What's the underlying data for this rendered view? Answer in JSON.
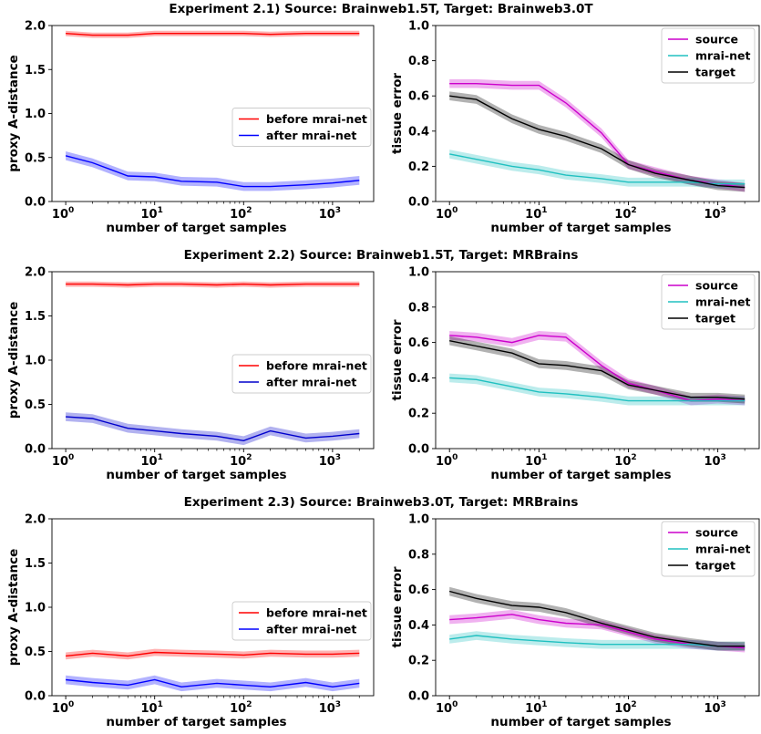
{
  "chart_data": [
    {
      "title": "Experiment 2.1) Source: Brainweb1.5T, Target: Brainweb3.0T",
      "panels": [
        {
          "type": "line",
          "xscale": "log",
          "xlim": [
            0.7,
            2900
          ],
          "ylim": [
            0,
            2.0
          ],
          "xticks": [
            1,
            10,
            100,
            1000
          ],
          "xticklabels": [
            "10",
            "10",
            "10",
            "10"
          ],
          "xtick_exponents": [
            "0",
            "1",
            "2",
            "3"
          ],
          "yticks": [
            "0.0",
            "0.5",
            "1.0",
            "1.5",
            "2.0"
          ],
          "xlabel": "number of target samples",
          "ylabel": "proxy A-distance",
          "legend_loc": "center-right",
          "x": [
            1,
            2,
            5,
            10,
            20,
            50,
            100,
            200,
            500,
            1000,
            2000
          ],
          "series": [
            {
              "name": "before mrai-net",
              "color": "#ff0000",
              "values": [
                1.91,
                1.89,
                1.89,
                1.91,
                1.91,
                1.91,
                1.91,
                1.9,
                1.91,
                1.91,
                1.91
              ],
              "band": 0.03
            },
            {
              "name": "after mrai-net",
              "color": "#0000ff",
              "values": [
                0.52,
                0.44,
                0.29,
                0.28,
                0.23,
                0.22,
                0.17,
                0.17,
                0.19,
                0.21,
                0.24
              ],
              "band": 0.05
            }
          ]
        },
        {
          "type": "line",
          "xscale": "log",
          "xlim": [
            0.7,
            2900
          ],
          "ylim": [
            0,
            1.0
          ],
          "xticks": [
            1,
            10,
            100,
            1000
          ],
          "xticklabels": [
            "10",
            "10",
            "10",
            "10"
          ],
          "xtick_exponents": [
            "0",
            "1",
            "2",
            "3"
          ],
          "yticks": [
            "0.0",
            "0.2",
            "0.4",
            "0.6",
            "0.8",
            "1.0"
          ],
          "xlabel": "number of target samples",
          "ylabel": "tissue error",
          "legend_loc": "top-right",
          "x": [
            1,
            2,
            5,
            10,
            20,
            50,
            100,
            200,
            500,
            1000,
            2000
          ],
          "series": [
            {
              "name": "source",
              "color": "#cc00cc",
              "values": [
                0.67,
                0.67,
                0.66,
                0.66,
                0.56,
                0.39,
                0.21,
                0.17,
                0.12,
                0.1,
                0.08
              ],
              "band": 0.025
            },
            {
              "name": "mrai-net",
              "color": "#20c0c0",
              "values": [
                0.27,
                0.24,
                0.2,
                0.18,
                0.15,
                0.13,
                0.11,
                0.11,
                0.11,
                0.1,
                0.1
              ],
              "band": 0.025
            },
            {
              "name": "target",
              "color": "#000000",
              "values": [
                0.6,
                0.58,
                0.47,
                0.41,
                0.37,
                0.3,
                0.21,
                0.16,
                0.12,
                0.09,
                0.08
              ],
              "band": 0.025
            }
          ]
        }
      ]
    },
    {
      "title": "Experiment 2.2) Source: Brainweb1.5T, Target: MRBrains",
      "panels": [
        {
          "type": "line",
          "xscale": "log",
          "xlim": [
            0.7,
            2900
          ],
          "ylim": [
            0,
            2.0
          ],
          "xticks": [
            1,
            10,
            100,
            1000
          ],
          "xticklabels": [
            "10",
            "10",
            "10",
            "10"
          ],
          "xtick_exponents": [
            "0",
            "1",
            "2",
            "3"
          ],
          "yticks": [
            "0.0",
            "0.5",
            "1.0",
            "1.5",
            "2.0"
          ],
          "xlabel": "number of target samples",
          "ylabel": "proxy A-distance",
          "legend_loc": "center-right",
          "x": [
            1,
            2,
            5,
            10,
            20,
            50,
            100,
            200,
            500,
            1000,
            2000
          ],
          "series": [
            {
              "name": "before mrai-net",
              "color": "#ff0000",
              "values": [
                1.86,
                1.86,
                1.85,
                1.86,
                1.86,
                1.85,
                1.86,
                1.85,
                1.86,
                1.86,
                1.86
              ],
              "band": 0.03
            },
            {
              "name": "after mrai-net",
              "color": "#0000cc",
              "values": [
                0.36,
                0.34,
                0.23,
                0.2,
                0.17,
                0.14,
                0.09,
                0.2,
                0.12,
                0.14,
                0.17
              ],
              "band": 0.05
            }
          ]
        },
        {
          "type": "line",
          "xscale": "log",
          "xlim": [
            0.7,
            2900
          ],
          "ylim": [
            0,
            1.0
          ],
          "xticks": [
            1,
            10,
            100,
            1000
          ],
          "xticklabels": [
            "10",
            "10",
            "10",
            "10"
          ],
          "xtick_exponents": [
            "0",
            "1",
            "2",
            "3"
          ],
          "yticks": [
            "0.0",
            "0.2",
            "0.4",
            "0.6",
            "0.8",
            "1.0"
          ],
          "xlabel": "number of target samples",
          "ylabel": "tissue error",
          "legend_loc": "top-right",
          "x": [
            1,
            2,
            5,
            10,
            20,
            50,
            100,
            200,
            500,
            1000,
            2000
          ],
          "series": [
            {
              "name": "source",
              "color": "#cc00cc",
              "values": [
                0.64,
                0.63,
                0.6,
                0.64,
                0.63,
                0.47,
                0.37,
                0.33,
                0.27,
                0.28,
                0.27
              ],
              "band": 0.025
            },
            {
              "name": "mrai-net",
              "color": "#20c0c0",
              "values": [
                0.4,
                0.39,
                0.35,
                0.32,
                0.31,
                0.29,
                0.27,
                0.27,
                0.27,
                0.27,
                0.27
              ],
              "band": 0.025
            },
            {
              "name": "target",
              "color": "#000000",
              "values": [
                0.61,
                0.58,
                0.54,
                0.48,
                0.47,
                0.44,
                0.36,
                0.33,
                0.29,
                0.29,
                0.28
              ],
              "band": 0.025
            }
          ]
        }
      ]
    },
    {
      "title": "Experiment 2.3) Source: Brainweb3.0T, Target: MRBrains",
      "panels": [
        {
          "type": "line",
          "xscale": "log",
          "xlim": [
            0.7,
            2900
          ],
          "ylim": [
            0,
            2.0
          ],
          "xticks": [
            1,
            10,
            100,
            1000
          ],
          "xticklabels": [
            "10",
            "10",
            "10",
            "10"
          ],
          "xtick_exponents": [
            "0",
            "1",
            "2",
            "3"
          ],
          "yticks": [
            "0.0",
            "0.5",
            "1.0",
            "1.5",
            "2.0"
          ],
          "xlabel": "number of target samples",
          "ylabel": "proxy A-distance",
          "legend_loc": "center-right",
          "x": [
            1,
            2,
            5,
            10,
            20,
            50,
            100,
            200,
            500,
            1000,
            2000
          ],
          "series": [
            {
              "name": "before mrai-net",
              "color": "#ff0000",
              "values": [
                0.45,
                0.48,
                0.45,
                0.49,
                0.48,
                0.47,
                0.46,
                0.48,
                0.47,
                0.47,
                0.48
              ],
              "band": 0.04
            },
            {
              "name": "after mrai-net",
              "color": "#0000ff",
              "values": [
                0.18,
                0.15,
                0.12,
                0.18,
                0.1,
                0.14,
                0.12,
                0.1,
                0.15,
                0.1,
                0.14
              ],
              "band": 0.05
            }
          ]
        },
        {
          "type": "line",
          "xscale": "log",
          "xlim": [
            0.7,
            2900
          ],
          "ylim": [
            0,
            1.0
          ],
          "xticks": [
            1,
            10,
            100,
            1000
          ],
          "xticklabels": [
            "10",
            "10",
            "10",
            "10"
          ],
          "xtick_exponents": [
            "0",
            "1",
            "2",
            "3"
          ],
          "yticks": [
            "0.0",
            "0.2",
            "0.4",
            "0.6",
            "0.8",
            "1.0"
          ],
          "xlabel": "number of target samples",
          "ylabel": "tissue error",
          "legend_loc": "top-right",
          "x": [
            1,
            2,
            5,
            10,
            20,
            50,
            100,
            200,
            500,
            1000,
            2000
          ],
          "series": [
            {
              "name": "source",
              "color": "#cc00cc",
              "values": [
                0.43,
                0.44,
                0.46,
                0.43,
                0.41,
                0.4,
                0.36,
                0.32,
                0.29,
                0.28,
                0.27
              ],
              "band": 0.025
            },
            {
              "name": "mrai-net",
              "color": "#20c0c0",
              "values": [
                0.32,
                0.34,
                0.32,
                0.31,
                0.3,
                0.29,
                0.29,
                0.29,
                0.29,
                0.28,
                0.28
              ],
              "band": 0.025
            },
            {
              "name": "target",
              "color": "#000000",
              "values": [
                0.59,
                0.55,
                0.51,
                0.5,
                0.47,
                0.41,
                0.37,
                0.33,
                0.3,
                0.28,
                0.28
              ],
              "band": 0.025
            }
          ]
        }
      ]
    }
  ]
}
